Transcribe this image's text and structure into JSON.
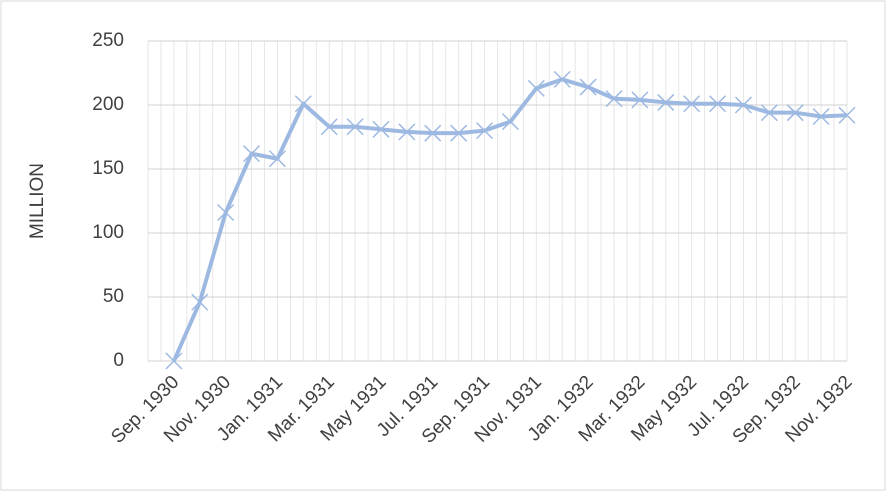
{
  "chart_data": {
    "type": "line",
    "y_label": "MILLION",
    "categories": [
      null,
      "Sep. 1930",
      null,
      "Nov. 1930",
      null,
      "Jan. 1931",
      null,
      "Mar. 1931",
      null,
      "May 1931",
      null,
      "Jul. 1931",
      null,
      "Sep. 1931",
      null,
      "Nov. 1931",
      null,
      "Jan. 1932",
      null,
      "Mar. 1932",
      null,
      "May 1932",
      null,
      "Jul. 1932",
      null,
      "Sep. 1932",
      null,
      "Nov. 1932"
    ],
    "series": [
      {
        "name": "MILLION",
        "color": "#9db9e2",
        "values": [
          null,
          0,
          46,
          116,
          162,
          158,
          201,
          183,
          183,
          181,
          179,
          178,
          178,
          180,
          187,
          213,
          220,
          214,
          205,
          204,
          202,
          201,
          201,
          200,
          194,
          194,
          191,
          192
        ]
      }
    ],
    "ylim": [
      0,
      250
    ],
    "yticks": [
      0,
      50,
      100,
      150,
      200,
      250
    ],
    "grid": true
  }
}
